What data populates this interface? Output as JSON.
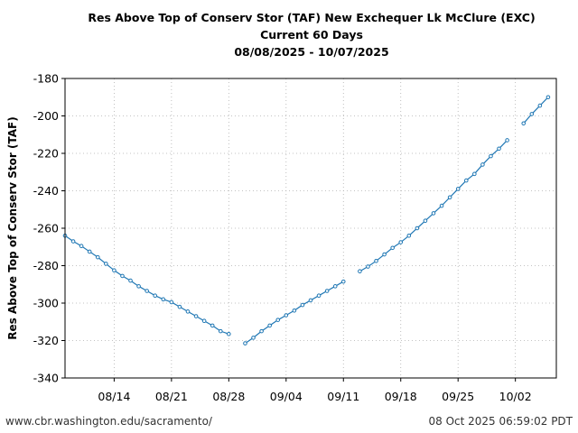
{
  "title": {
    "line1": "Res Above Top of Conserv Stor (TAF) New Exchequer Lk McClure (EXC)",
    "line2": "Current 60 Days",
    "line3": "08/08/2025 - 10/07/2025"
  },
  "footer": {
    "left": "www.cbr.washington.edu/sacramento/",
    "right": "08 Oct 2025 06:59:02 PDT"
  },
  "colors": {
    "line": "#1f77b4",
    "grid": "#b0b0b0"
  },
  "chart_data": {
    "type": "line",
    "ylabel": "Res Above Top of Conserv Stor (TAF)",
    "xlabel": "",
    "ylim": [
      -340,
      -180
    ],
    "xlim": [
      "2025-08-08",
      "2025-10-07"
    ],
    "yticks": [
      -180,
      -200,
      -220,
      -240,
      -260,
      -280,
      -300,
      -320,
      -340
    ],
    "xticks": [
      {
        "date": "2025-08-14",
        "label": "08/14"
      },
      {
        "date": "2025-08-21",
        "label": "08/21"
      },
      {
        "date": "2025-08-28",
        "label": "08/28"
      },
      {
        "date": "2025-09-04",
        "label": "09/04"
      },
      {
        "date": "2025-09-11",
        "label": "09/11"
      },
      {
        "date": "2025-09-18",
        "label": "09/18"
      },
      {
        "date": "2025-09-25",
        "label": "09/25"
      },
      {
        "date": "2025-10-02",
        "label": "10/02"
      }
    ],
    "grid": true,
    "series": [
      {
        "segments": [
          [
            [
              "2025-08-08",
              -264
            ],
            [
              "2025-08-09",
              -267
            ],
            [
              "2025-08-10",
              -269.5
            ],
            [
              "2025-08-11",
              -272.5
            ],
            [
              "2025-08-12",
              -275.5
            ],
            [
              "2025-08-13",
              -279
            ],
            [
              "2025-08-14",
              -282.5
            ],
            [
              "2025-08-15",
              -285.5
            ],
            [
              "2025-08-16",
              -288
            ],
            [
              "2025-08-17",
              -291
            ],
            [
              "2025-08-18",
              -293.5
            ],
            [
              "2025-08-19",
              -296
            ],
            [
              "2025-08-20",
              -298
            ],
            [
              "2025-08-21",
              -299.5
            ],
            [
              "2025-08-22",
              -302
            ],
            [
              "2025-08-23",
              -304.5
            ],
            [
              "2025-08-24",
              -307
            ],
            [
              "2025-08-25",
              -309.5
            ],
            [
              "2025-08-26",
              -312
            ],
            [
              "2025-08-27",
              -315
            ],
            [
              "2025-08-28",
              -316.5
            ]
          ],
          [
            [
              "2025-08-30",
              -321.5
            ],
            [
              "2025-08-31",
              -318.5
            ],
            [
              "2025-09-01",
              -315
            ],
            [
              "2025-09-02",
              -312
            ],
            [
              "2025-09-03",
              -309
            ],
            [
              "2025-09-04",
              -306.5
            ],
            [
              "2025-09-05",
              -304
            ],
            [
              "2025-09-06",
              -301
            ],
            [
              "2025-09-07",
              -298.5
            ],
            [
              "2025-09-08",
              -296
            ],
            [
              "2025-09-09",
              -293.5
            ],
            [
              "2025-09-10",
              -291
            ],
            [
              "2025-09-11",
              -288.5
            ]
          ],
          [
            [
              "2025-09-13",
              -283
            ],
            [
              "2025-09-14",
              -280.5
            ],
            [
              "2025-09-15",
              -277.5
            ],
            [
              "2025-09-16",
              -274
            ],
            [
              "2025-09-17",
              -270.5
            ],
            [
              "2025-09-18",
              -267.5
            ],
            [
              "2025-09-19",
              -264
            ],
            [
              "2025-09-20",
              -260
            ],
            [
              "2025-09-21",
              -256
            ],
            [
              "2025-09-22",
              -252
            ],
            [
              "2025-09-23",
              -248
            ],
            [
              "2025-09-24",
              -243.5
            ],
            [
              "2025-09-25",
              -239
            ],
            [
              "2025-09-26",
              -234.5
            ],
            [
              "2025-09-27",
              -231
            ],
            [
              "2025-09-28",
              -226
            ],
            [
              "2025-09-29",
              -221.5
            ],
            [
              "2025-09-30",
              -217.5
            ],
            [
              "2025-10-01",
              -213
            ]
          ],
          [
            [
              "2025-10-03",
              -204
            ],
            [
              "2025-10-04",
              -199
            ],
            [
              "2025-10-05",
              -194.5
            ],
            [
              "2025-10-06",
              -190
            ]
          ]
        ]
      }
    ]
  }
}
